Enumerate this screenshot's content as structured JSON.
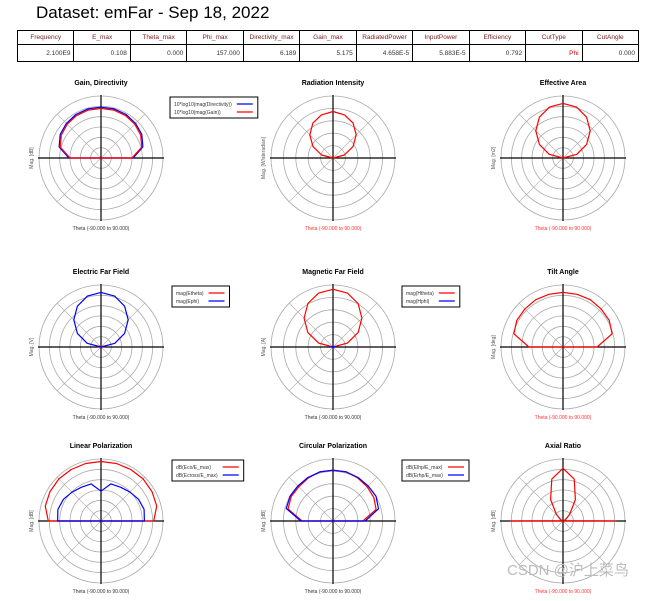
{
  "header": {
    "title": "Dataset: emFar - Sep 18, 2022"
  },
  "table": {
    "columns": [
      "Frequency",
      "E_max",
      "Theta_max",
      "Phi_max",
      "Directivity_max",
      "Gain_max",
      "RadiatedPower",
      "InputPower",
      "Efficiency",
      "CutType",
      "CutAngle"
    ],
    "values": [
      "2.100E9",
      "0.108",
      "0.000",
      "157.000",
      "6.189",
      "5.175",
      "4.658E-5",
      "5.883E-5",
      "0.792",
      "Phi",
      "0.000"
    ]
  },
  "watermark": "CSDN @沪上菜鸟",
  "chart_data": [
    {
      "type": "polar",
      "title": "Gain, Directivity",
      "ylabel": "Mag. [dB]",
      "xlabel": "Theta (-90.000 to 90.000)",
      "xlabel_color": "#333333",
      "rings": 6,
      "theta": [
        -90,
        -75,
        -60,
        -45,
        -30,
        -15,
        0,
        15,
        30,
        45,
        60,
        75,
        90
      ],
      "series": [
        {
          "name": "10*log10(mag(Directivity))",
          "color": "#0000ff",
          "values": [
            0.52,
            0.7,
            0.76,
            0.79,
            0.81,
            0.82,
            0.82,
            0.82,
            0.81,
            0.79,
            0.76,
            0.7,
            0.52
          ]
        },
        {
          "name": "10*log10(mag(Gain))",
          "color": "#ff0000",
          "values": [
            0.5,
            0.68,
            0.74,
            0.77,
            0.79,
            0.8,
            0.8,
            0.8,
            0.79,
            0.77,
            0.74,
            0.68,
            0.5
          ]
        }
      ]
    },
    {
      "type": "polar",
      "title": "Radiation Intensity",
      "ylabel": "Mag. [W/steradian]",
      "xlabel": "Theta (-90.000 to 90.000)",
      "xlabel_color": "#ff3333",
      "rings": 5,
      "theta": [
        -90,
        -75,
        -60,
        -45,
        -30,
        -15,
        0,
        15,
        30,
        45,
        60,
        75,
        90
      ],
      "series": [
        {
          "color": "#ff0000",
          "values": [
            0,
            0.19,
            0.375,
            0.53,
            0.65,
            0.72,
            0.75,
            0.72,
            0.65,
            0.53,
            0.375,
            0.19,
            0
          ]
        }
      ]
    },
    {
      "type": "polar",
      "title": "Effective Area",
      "ylabel": "Mag. [m2]",
      "xlabel": "Theta (-90.000 to 90.000)",
      "xlabel_color": "#ff3333",
      "rings": 6,
      "theta": [
        -90,
        -75,
        -60,
        -45,
        -30,
        -15,
        0,
        15,
        30,
        45,
        60,
        75,
        90
      ],
      "series": [
        {
          "color": "#ff0000",
          "values": [
            0,
            0.23,
            0.44,
            0.62,
            0.76,
            0.85,
            0.88,
            0.85,
            0.76,
            0.62,
            0.44,
            0.23,
            0
          ]
        }
      ]
    },
    {
      "type": "polar",
      "title": "Electric Far Field",
      "ylabel": "Mag. [V]",
      "xlabel": "Theta (-90.000 to 90.000)",
      "xlabel_color": "#333333",
      "rings": 6,
      "theta": [
        -90,
        -75,
        -60,
        -45,
        -30,
        -15,
        0,
        15,
        30,
        45,
        60,
        75,
        90
      ],
      "series": [
        {
          "name": "mag(Etheta)",
          "color": "#ff0000",
          "values": [
            0.05,
            0.03,
            0.02,
            0.01,
            0,
            0,
            0,
            0,
            0,
            0.01,
            0.02,
            0.03,
            0.05
          ]
        },
        {
          "name": "mag(Ephi)",
          "color": "#0000ff",
          "values": [
            0,
            0.23,
            0.44,
            0.62,
            0.76,
            0.85,
            0.88,
            0.85,
            0.76,
            0.62,
            0.44,
            0.23,
            0
          ]
        }
      ]
    },
    {
      "type": "polar",
      "title": "Magnetic Far Field",
      "ylabel": "Mag. [A]",
      "xlabel": "Theta (-90.000 to 90.000)",
      "xlabel_color": "#333333",
      "rings": 5,
      "theta": [
        -90,
        -75,
        -60,
        -45,
        -30,
        -15,
        0,
        15,
        30,
        45,
        60,
        75,
        90
      ],
      "series": [
        {
          "name": "mag(Htheta)",
          "color": "#ff0000",
          "values": [
            0,
            0.24,
            0.47,
            0.66,
            0.81,
            0.9,
            0.93,
            0.9,
            0.81,
            0.66,
            0.47,
            0.24,
            0
          ]
        },
        {
          "name": "mag(Hphi)",
          "color": "#0000ff",
          "values": [
            0.04,
            0.02,
            0.01,
            0,
            0,
            0,
            0,
            0,
            0,
            0,
            0.01,
            0.02,
            0.04
          ]
        }
      ]
    },
    {
      "type": "polar",
      "title": "Tilt Angle",
      "ylabel": "Mag. [deg]",
      "xlabel": "Theta (-90.000 to 90.000)",
      "xlabel_color": "#ff3333",
      "rings": 6,
      "theta": [
        -90,
        -75,
        -60,
        -45,
        -30,
        -15,
        0,
        15,
        30,
        45,
        60,
        75,
        90
      ],
      "series": [
        {
          "color": "#ff0000",
          "values": [
            0.55,
            0.82,
            0.86,
            0.87,
            0.88,
            0.88,
            0.88,
            0.88,
            0.88,
            0.87,
            0.86,
            0.82,
            0.55
          ]
        }
      ]
    },
    {
      "type": "polar",
      "title": "Linear Polarization",
      "ylabel": "Mag. [dB]",
      "xlabel": "Theta (-90.000 to 90.000)",
      "xlabel_color": "#333333",
      "rings": 6,
      "theta": [
        -90,
        -75,
        -60,
        -45,
        -30,
        -15,
        0,
        15,
        30,
        45,
        60,
        75,
        90
      ],
      "series": [
        {
          "name": "dB(Eco/E_max)",
          "color": "#ff0000",
          "values": [
            0.85,
            0.93,
            0.95,
            0.96,
            0.96,
            0.96,
            0.96,
            0.96,
            0.96,
            0.96,
            0.95,
            0.93,
            0.85
          ]
        },
        {
          "name": "dB(Ecross/E_max)",
          "color": "#0000ff",
          "values": [
            0.7,
            0.72,
            0.7,
            0.66,
            0.63,
            0.62,
            0.48,
            0.62,
            0.63,
            0.66,
            0.7,
            0.72,
            0.7
          ]
        }
      ]
    },
    {
      "type": "polar",
      "title": "Circular Polarization",
      "ylabel": "Mag. [dB]",
      "xlabel": "Theta (-90.000 to 90.000)",
      "xlabel_color": "#333333",
      "rings": 5,
      "theta": [
        -90,
        -75,
        -60,
        -45,
        -30,
        -15,
        0,
        15,
        30,
        45,
        60,
        75,
        90
      ],
      "series": [
        {
          "name": "dB(Elhp/E_max)",
          "color": "#ff0000",
          "values": [
            0.5,
            0.75,
            0.78,
            0.78,
            0.8,
            0.82,
            0.82,
            0.82,
            0.8,
            0.78,
            0.76,
            0.72,
            0.48
          ]
        },
        {
          "name": "dB(Erhp/E_max)",
          "color": "#0000ff",
          "values": [
            0.52,
            0.78,
            0.8,
            0.8,
            0.81,
            0.82,
            0.82,
            0.82,
            0.81,
            0.8,
            0.8,
            0.76,
            0.52
          ]
        }
      ]
    },
    {
      "type": "polar",
      "title": "Axial Ratio",
      "ylabel": "Mag. [dB]",
      "xlabel": "Theta (-90.000 to 90.000)",
      "xlabel_color": "#ff3333",
      "rings": 6,
      "theta": [
        -90,
        -75,
        -60,
        -45,
        -30,
        -15,
        0,
        15,
        30,
        45,
        60,
        75,
        90
      ],
      "series": [
        {
          "color": "#ff0000",
          "values": [
            0.85,
            0.02,
            0.05,
            0.15,
            0.4,
            0.7,
            0.85,
            0.7,
            0.4,
            0.15,
            0.05,
            0.02,
            0.85
          ]
        }
      ]
    }
  ]
}
